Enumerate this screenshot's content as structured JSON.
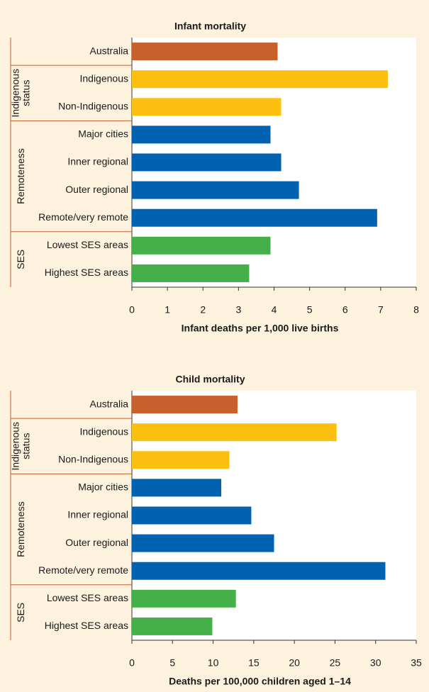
{
  "chart_data": [
    {
      "type": "bar",
      "orientation": "horizontal",
      "title": "Infant mortality",
      "xlabel": "Infant deaths per 1,000 live births",
      "categories": [
        "Australia",
        "Indigenous",
        "Non-Indigenous",
        "Major cities",
        "Inner regional",
        "Outer regional",
        "Remote/very remote",
        "Lowest SES areas",
        "Highest SES areas"
      ],
      "category_groups": [
        null,
        "Indigenous status",
        "Indigenous status",
        "Remoteness",
        "Remoteness",
        "Remoteness",
        "Remoteness",
        "SES",
        "SES"
      ],
      "values": [
        4.1,
        7.2,
        4.2,
        3.9,
        4.2,
        4.7,
        6.9,
        3.9,
        3.3
      ],
      "colors": [
        "#c8602b",
        "#fdc010",
        "#fdc010",
        "#0062b0",
        "#0062b0",
        "#0062b0",
        "#0062b0",
        "#45b04a",
        "#45b04a"
      ],
      "xlim": [
        0,
        8
      ],
      "xticks": [
        0,
        1,
        2,
        3,
        4,
        5,
        6,
        7,
        8
      ]
    },
    {
      "type": "bar",
      "orientation": "horizontal",
      "title": "Child mortality",
      "xlabel": "Deaths per 100,000 children aged 1–14",
      "categories": [
        "Australia",
        "Indigenous",
        "Non-Indigenous",
        "Major cities",
        "Inner regional",
        "Outer regional",
        "Remote/very remote",
        "Lowest SES areas",
        "Highest SES areas"
      ],
      "category_groups": [
        null,
        "Indigenous status",
        "Indigenous status",
        "Remoteness",
        "Remoteness",
        "Remoteness",
        "Remoteness",
        "SES",
        "SES"
      ],
      "values": [
        13.0,
        25.2,
        12.0,
        11.0,
        14.7,
        17.5,
        31.2,
        12.8,
        9.9
      ],
      "colors": [
        "#c8602b",
        "#fdc010",
        "#fdc010",
        "#0062b0",
        "#0062b0",
        "#0062b0",
        "#0062b0",
        "#45b04a",
        "#45b04a"
      ],
      "xlim": [
        0,
        35
      ],
      "xticks": [
        0,
        5,
        10,
        15,
        20,
        25,
        30,
        35
      ]
    }
  ]
}
